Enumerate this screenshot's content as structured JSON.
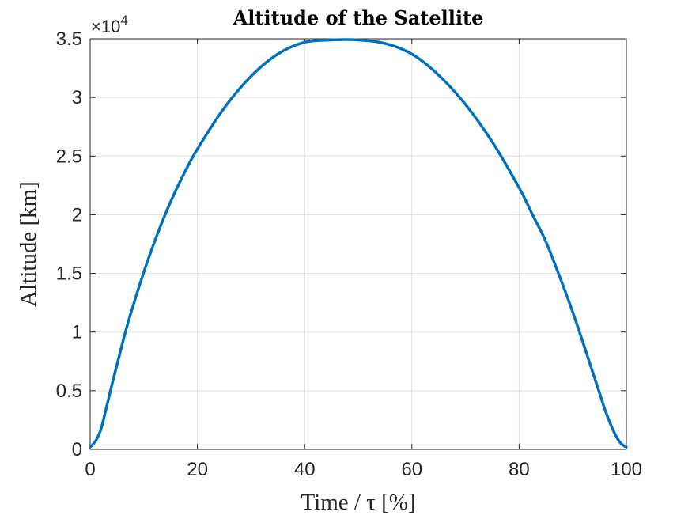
{
  "chart_data": {
    "type": "line",
    "title": "Altitude of the Satellite",
    "xlabel": "Time / τ [%]",
    "ylabel": "Altitude [km]",
    "y_exponent_label": "×10",
    "y_exponent_power": "4",
    "xlim": [
      0,
      100
    ],
    "ylim": [
      0,
      3.5
    ],
    "x_ticks": [
      0,
      20,
      40,
      60,
      80,
      100
    ],
    "y_ticks": [
      0,
      0.5,
      1,
      1.5,
      2,
      2.5,
      3,
      3.5
    ],
    "x_tick_labels": [
      "0",
      "20",
      "40",
      "60",
      "80",
      "100"
    ],
    "y_tick_labels": [
      "0",
      "0.5",
      "1",
      "1.5",
      "2",
      "2.5",
      "3",
      "3.5"
    ],
    "grid": true,
    "series": [
      {
        "color": "#0072bd",
        "x": [
          0,
          1,
          2,
          3,
          4,
          5,
          7,
          10,
          12.5,
          15,
          17.5,
          20,
          25,
          30,
          35,
          40,
          45,
          50,
          55,
          60,
          65,
          70,
          75,
          80,
          82.5,
          85,
          87.5,
          90,
          93,
          95,
          96,
          97,
          98,
          99,
          100
        ],
        "y": [
          0.02,
          0.07,
          0.17,
          0.35,
          0.54,
          0.72,
          1.07,
          1.51,
          1.83,
          2.11,
          2.35,
          2.56,
          2.91,
          3.18,
          3.37,
          3.47,
          3.49,
          3.49,
          3.46,
          3.37,
          3.19,
          2.94,
          2.62,
          2.23,
          2.0,
          1.77,
          1.48,
          1.17,
          0.76,
          0.48,
          0.34,
          0.22,
          0.12,
          0.05,
          0.02
        ]
      }
    ]
  }
}
